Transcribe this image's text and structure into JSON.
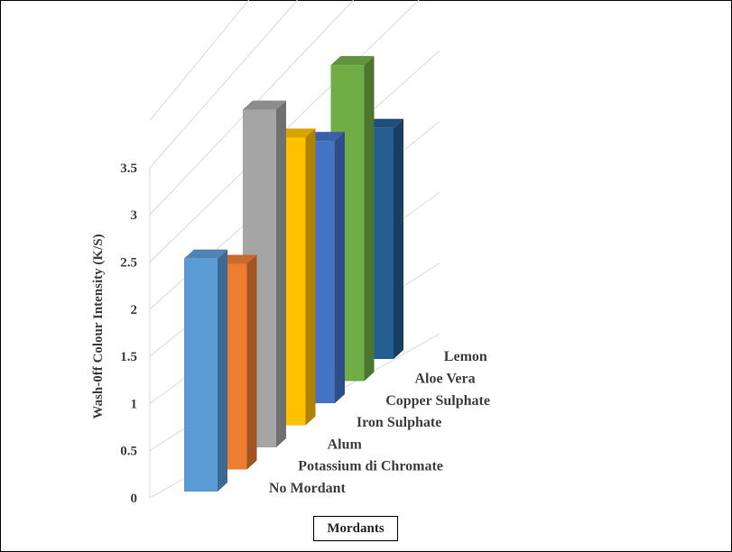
{
  "chart_data": {
    "type": "bar",
    "categories": [
      "No Mordant",
      "Potassium di Chromate",
      "Alum",
      "Iron Sulphate",
      "Copper Sulphate",
      "Aloe Vera",
      "Lemon"
    ],
    "values": [
      2.47,
      2.18,
      3.58,
      3.05,
      2.78,
      3.35,
      2.45
    ],
    "colors": [
      "#5b9bd5",
      "#ed7d31",
      "#a5a5a5",
      "#ffc000",
      "#4472c4",
      "#70ad47",
      "#255e91"
    ],
    "title": "",
    "xlabel": "Mordants",
    "ylabel": "Wash-0ff  Colour Intensity  (K/S)",
    "ylim": [
      0,
      3.5
    ],
    "yticks": [
      "0",
      "0.5",
      "1",
      "1.5",
      "2",
      "2.5",
      "3",
      "3.5"
    ],
    "grid": true,
    "legend": "none",
    "projection": "3d-depth"
  }
}
